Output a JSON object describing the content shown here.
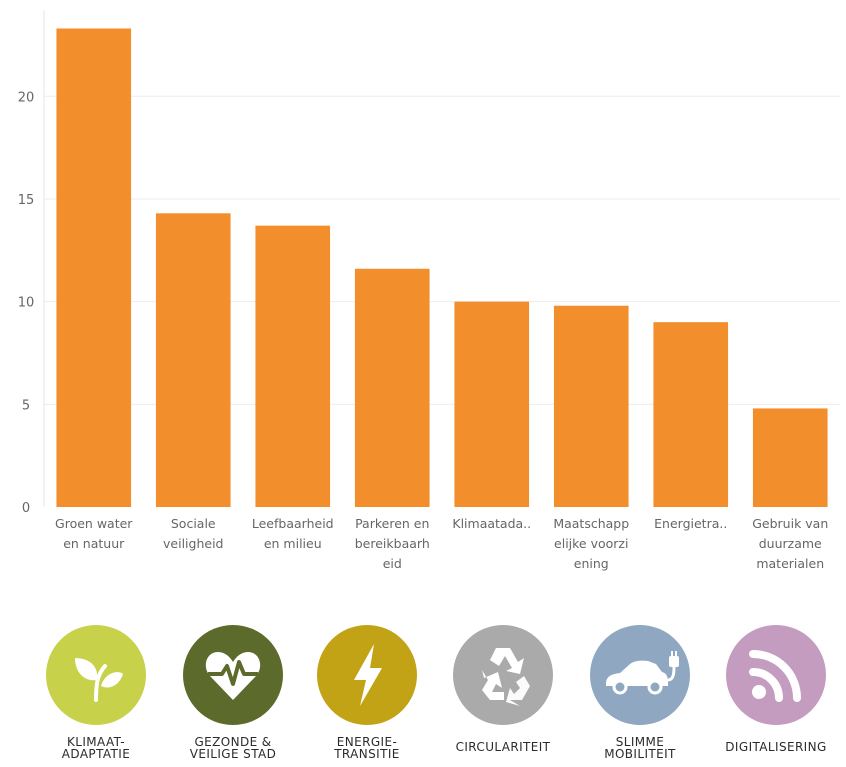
{
  "chart_data": {
    "type": "bar",
    "categories": [
      "Groen water en natuur",
      "Sociale veiligheid",
      "Leefbaarheid en milieu",
      "Parkeren en bereikbaarheid",
      "Klimaatada..",
      "Maatschappelijke voorziening",
      "Energietra..",
      "Gebruik van duurzame materialen"
    ],
    "category_label_lines": [
      [
        "Groen water",
        "en natuur"
      ],
      [
        "Sociale",
        "veiligheid"
      ],
      [
        "Leefbaarheid",
        "en milieu"
      ],
      [
        "Parkeren en",
        "bereikbaarh",
        "eid"
      ],
      [
        "Klimaatada.."
      ],
      [
        "Maatschapp",
        "elijke voorzi",
        "ening"
      ],
      [
        "Energietra.."
      ],
      [
        "Gebruik van",
        "duurzame",
        "materialen"
      ]
    ],
    "values": [
      23.3,
      14.3,
      13.7,
      11.6,
      10.0,
      9.8,
      9.0,
      4.8
    ],
    "yticks": [
      0,
      5,
      10,
      15,
      20
    ],
    "ylim": [
      0,
      24.2
    ],
    "bar_color": "#f28e2b",
    "grid": true,
    "title": "",
    "xlabel": "",
    "ylabel": ""
  },
  "themes": [
    {
      "name": "klimaat-adaptatie-icon",
      "lines": [
        "KLIMAAT-",
        "ADAPTATIE"
      ],
      "color": "#c8d14a"
    },
    {
      "name": "heart-pulse-icon",
      "lines": [
        "GEZONDE &",
        "VEILIGE STAD"
      ],
      "color": "#5c6a2b"
    },
    {
      "name": "lightning-icon",
      "lines": [
        "ENERGIE-",
        "TRANSITIE"
      ],
      "color": "#c3a316"
    },
    {
      "name": "recycle-icon",
      "lines": [
        "CIRCULARITEIT"
      ],
      "color": "#aaaaaa"
    },
    {
      "name": "electric-car-icon",
      "lines": [
        "SLIMME",
        "MOBILITEIT"
      ],
      "color": "#8fa7c1"
    },
    {
      "name": "wifi-signal-icon",
      "lines": [
        "DIGITALISERING"
      ],
      "color": "#c49cbf"
    }
  ]
}
